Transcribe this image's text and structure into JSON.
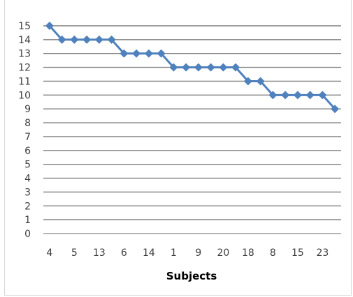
{
  "chart_data": {
    "type": "line",
    "title": "",
    "xlabel": "Subjects",
    "ylabel": "",
    "ylim": [
      0,
      15
    ],
    "yticks": [
      0,
      1,
      2,
      3,
      4,
      5,
      6,
      7,
      8,
      9,
      10,
      11,
      12,
      13,
      14,
      15
    ],
    "x_tick_labels": [
      "4",
      "5",
      "13",
      "6",
      "14",
      "1",
      "9",
      "20",
      "18",
      "8",
      "15",
      "23"
    ],
    "values": [
      15,
      14,
      14,
      14,
      14,
      14,
      13,
      13,
      13,
      13,
      12,
      12,
      12,
      12,
      12,
      12,
      11,
      11,
      10,
      10,
      10,
      10,
      10,
      9
    ],
    "grid": true,
    "legend": "none",
    "series_color": "#4f81bd"
  }
}
